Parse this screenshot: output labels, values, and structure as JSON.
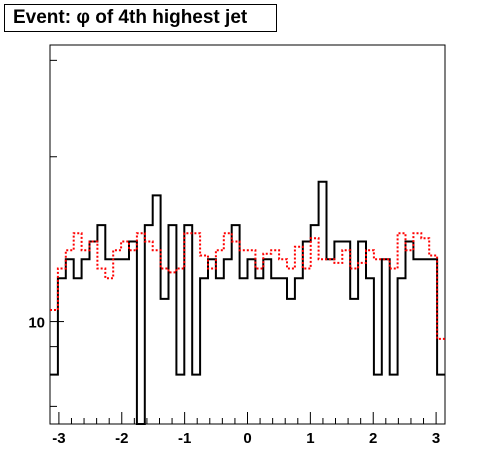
{
  "chart_data": {
    "type": "step",
    "title": "Event: φ of 4th highest jet",
    "xlabel": "",
    "ylabel": "",
    "xlim": [
      -3.1416,
      3.1416
    ],
    "ylim": [
      6.5,
      32
    ],
    "y_scale": "log",
    "grid": false,
    "bins": 50,
    "x_ticks": [
      -3,
      -2,
      -1,
      0,
      1,
      2,
      3
    ],
    "y_ticks": [
      10
    ],
    "series": [
      {
        "color": "#000000",
        "style": "solid",
        "values": [
          8,
          12,
          13,
          12,
          13,
          14,
          15,
          13,
          13,
          13,
          14,
          0,
          15,
          17,
          11,
          15,
          8,
          15,
          8,
          12,
          13,
          12,
          13,
          15,
          12,
          13,
          12,
          13,
          12,
          12,
          11,
          12,
          14,
          15,
          18,
          13,
          14,
          14,
          11,
          14,
          12,
          8,
          13,
          8,
          12,
          14,
          13,
          13,
          13,
          8
        ]
      },
      {
        "color": "#ff0000",
        "style": "dotted",
        "values": [
          10.5,
          12.5,
          13.5,
          14.5,
          13.5,
          14,
          12.5,
          12,
          13.5,
          14,
          13.5,
          14.5,
          14,
          13.5,
          12.5,
          12.3,
          12.5,
          14.5,
          14.5,
          13.2,
          12.5,
          13.5,
          14.5,
          14,
          13.5,
          13.5,
          12.5,
          13.3,
          13.5,
          13,
          12.5,
          13.7,
          12.5,
          14.2,
          13,
          13,
          12.8,
          13.5,
          12.5,
          12.8,
          13.5,
          13,
          13,
          12.5,
          14.5,
          13.5,
          14.5,
          14.2,
          13.2,
          9.3
        ]
      }
    ]
  }
}
